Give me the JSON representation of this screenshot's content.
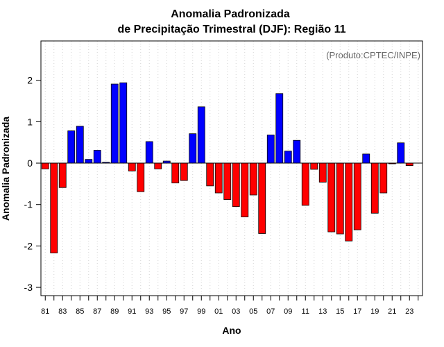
{
  "chart_data": {
    "type": "bar",
    "title": "Anomalia Padronizada",
    "subtitle": "de Precipitação Trimestral (DJF): Região 11",
    "xlabel": "Ano",
    "ylabel": "Anomalia Padronizada",
    "annotation": "(Produto:CPTEC/INPE)",
    "ylim": [
      -3.2,
      2.95
    ],
    "yticks": [
      -3,
      -2,
      -1,
      0,
      1,
      2
    ],
    "grid": true,
    "positive_color": "#0000ff",
    "negative_color": "#ff0000",
    "categories": [
      "81",
      "82",
      "83",
      "84",
      "85",
      "86",
      "87",
      "88",
      "89",
      "90",
      "91",
      "92",
      "93",
      "94",
      "95",
      "96",
      "97",
      "98",
      "99",
      "00",
      "01",
      "02",
      "03",
      "04",
      "05",
      "06",
      "07",
      "08",
      "09",
      "10",
      "11",
      "12",
      "13",
      "14",
      "15",
      "16",
      "17",
      "18",
      "19",
      "20",
      "21",
      "22",
      "23",
      "24"
    ],
    "tick_labels": [
      "81",
      "83",
      "85",
      "87",
      "89",
      "91",
      "93",
      "95",
      "97",
      "99",
      "01",
      "03",
      "05",
      "07",
      "09",
      "11",
      "13",
      "15",
      "17",
      "19",
      "21",
      "23"
    ],
    "values": [
      -0.14,
      -2.17,
      -0.59,
      0.78,
      0.89,
      0.09,
      0.31,
      0.02,
      1.91,
      1.94,
      -0.19,
      -0.69,
      0.52,
      -0.14,
      0.05,
      -0.48,
      -0.42,
      0.71,
      1.36,
      -0.55,
      -0.72,
      -0.88,
      -1.05,
      -1.3,
      -0.77,
      -1.7,
      0.68,
      1.68,
      0.29,
      0.55,
      -1.02,
      -0.15,
      -0.46,
      -1.66,
      -1.71,
      -1.88,
      -1.61,
      0.22,
      -1.21,
      -0.72,
      -0.01,
      0.49,
      -0.06,
      0.0
    ]
  }
}
